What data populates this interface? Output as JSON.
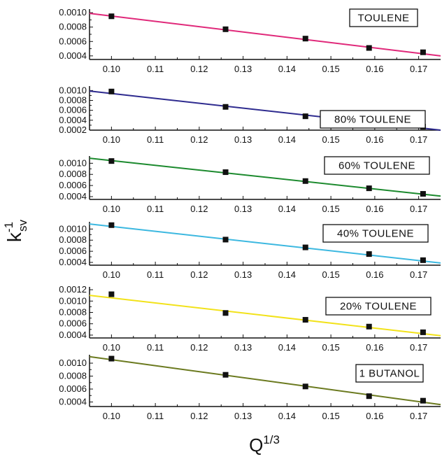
{
  "chart_data": {
    "type": "line",
    "shared_axes": {
      "xlabel": "Q",
      "xlabel_superscript": "1/3",
      "ylabel": "k",
      "ylabel_superscript": "-1",
      "ylabel_subscript": "sv",
      "xlim": [
        0.095,
        0.175
      ],
      "xticks": [
        0.1,
        0.11,
        0.12,
        0.13,
        0.14,
        0.15,
        0.16,
        0.17
      ],
      "xtick_labels": [
        "0.10",
        "0.11",
        "0.12",
        "0.13",
        "0.14",
        "0.15",
        "0.16",
        "0.17"
      ],
      "grid": false,
      "legend_placement": "top-right"
    },
    "panels": [
      {
        "name": "TOULENE",
        "line_color": "#e0297a",
        "ylim": [
          0.00035,
          0.00105
        ],
        "yticks": [
          0.0004,
          0.0006,
          0.0008,
          0.001
        ],
        "ytick_labels": [
          "0.0004",
          "0.0006",
          "0.0008",
          "0.0010"
        ],
        "x": [
          0.1,
          0.126,
          0.1442,
          0.1587,
          0.171
        ],
        "y": [
          0.00095,
          0.00077,
          0.00064,
          0.00051,
          0.00045
        ],
        "fit_y_at_xlim": [
          0.00099,
          0.0004
        ]
      },
      {
        "name": "80% TOULENE",
        "line_color": "#2e2b8f",
        "ylim": [
          0.0002,
          0.00109
        ],
        "yticks": [
          0.0002,
          0.0004,
          0.0006,
          0.0008,
          0.001
        ],
        "ytick_labels": [
          "0.0002",
          "0.0004",
          "0.0006",
          "0.0008",
          "0.0010"
        ],
        "x": [
          0.1,
          0.126,
          0.1442,
          0.1587,
          0.171
        ],
        "y": [
          0.00098,
          0.00067,
          0.00048,
          0.00034,
          0.00027
        ],
        "fit_y_at_xlim": [
          0.00099,
          0.0002
        ]
      },
      {
        "name": "60% TOULENE",
        "line_color": "#1c8a2e",
        "ylim": [
          0.00035,
          0.00113
        ],
        "yticks": [
          0.0004,
          0.0006,
          0.0008,
          0.001
        ],
        "ytick_labels": [
          "0.0004",
          "0.0006",
          "0.0008",
          "0.0010"
        ],
        "x": [
          0.1,
          0.126,
          0.1442,
          0.1587,
          0.171
        ],
        "y": [
          0.00104,
          0.00084,
          0.00068,
          0.00055,
          0.00045
        ],
        "fit_y_at_xlim": [
          0.00109,
          0.00041
        ]
      },
      {
        "name": "40% TOULENE",
        "line_color": "#3cb8e0",
        "ylim": [
          0.00035,
          0.00113
        ],
        "yticks": [
          0.0004,
          0.0006,
          0.0008,
          0.001
        ],
        "ytick_labels": [
          "0.0004",
          "0.0006",
          "0.0008",
          "0.0010"
        ],
        "x": [
          0.1,
          0.126,
          0.1442,
          0.1587,
          0.171
        ],
        "y": [
          0.00107,
          0.00081,
          0.00067,
          0.00055,
          0.00044
        ],
        "fit_y_at_xlim": [
          0.00109,
          0.00039
        ]
      },
      {
        "name": "20% TOULENE",
        "line_color": "#f2e21a",
        "ylim": [
          0.00035,
          0.00125
        ],
        "yticks": [
          0.0004,
          0.0006,
          0.0008,
          0.001,
          0.0012
        ],
        "ytick_labels": [
          "0.0004",
          "0.0006",
          "0.0008",
          "0.0010",
          "0.0012"
        ],
        "x": [
          0.1,
          0.126,
          0.1442,
          0.1587,
          0.171
        ],
        "y": [
          0.00112,
          0.00079,
          0.00067,
          0.00055,
          0.00045
        ],
        "fit_y_at_xlim": [
          0.0011,
          0.00039
        ]
      },
      {
        "name": "1 BUTANOL",
        "line_color": "#6b7a1f",
        "ylim": [
          0.00033,
          0.00113
        ],
        "yticks": [
          0.0004,
          0.0006,
          0.0008,
          0.001
        ],
        "ytick_labels": [
          "0.0004",
          "0.0006",
          "0.0008",
          "0.0010"
        ],
        "x": [
          0.1,
          0.126,
          0.1442,
          0.1587,
          0.171
        ],
        "y": [
          0.00107,
          0.00082,
          0.00064,
          0.00049,
          0.00042
        ],
        "fit_y_at_xlim": [
          0.0011,
          0.00036
        ]
      }
    ]
  }
}
